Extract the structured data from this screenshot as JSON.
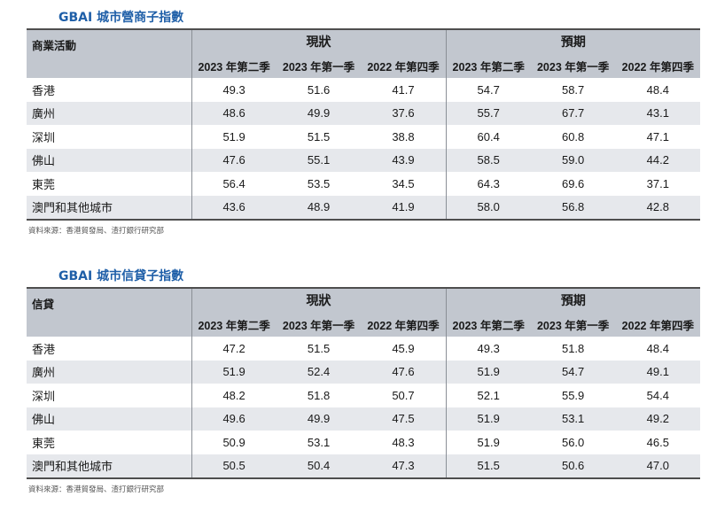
{
  "table1": {
    "title": "GBAI 城市營商子指數",
    "label_header": "商業活動",
    "group_current": "現狀",
    "group_expected": "預期",
    "periods": [
      "2023 年第二季",
      "2023 年第一季",
      "2022 年第四季",
      "2023 年第二季",
      "2023 年第一季",
      "2022 年第四季"
    ],
    "rows": [
      {
        "city": "香港",
        "v": [
          "49.3",
          "51.6",
          "41.7",
          "54.7",
          "58.7",
          "48.4"
        ]
      },
      {
        "city": "廣州",
        "v": [
          "48.6",
          "49.9",
          "37.6",
          "55.7",
          "67.7",
          "43.1"
        ]
      },
      {
        "city": "深圳",
        "v": [
          "51.9",
          "51.5",
          "38.8",
          "60.4",
          "60.8",
          "47.1"
        ]
      },
      {
        "city": "佛山",
        "v": [
          "47.6",
          "55.1",
          "43.9",
          "58.5",
          "59.0",
          "44.2"
        ]
      },
      {
        "city": "東莞",
        "v": [
          "56.4",
          "53.5",
          "34.5",
          "64.3",
          "69.6",
          "37.1"
        ]
      },
      {
        "city": "澳門和其他城市",
        "v": [
          "43.6",
          "48.9",
          "41.9",
          "58.0",
          "56.8",
          "42.8"
        ]
      }
    ],
    "source": "資料來源：香港貿發局、渣打銀行研究部"
  },
  "table2": {
    "title": "GBAI 城市信貸子指數",
    "label_header": "信貸",
    "group_current": "現狀",
    "group_expected": "預期",
    "periods": [
      "2023 年第二季",
      "2023 年第一季",
      "2022 年第四季",
      "2023 年第二季",
      "2023 年第一季",
      "2022 年第四季"
    ],
    "rows": [
      {
        "city": "香港",
        "v": [
          "47.2",
          "51.5",
          "45.9",
          "49.3",
          "51.8",
          "48.4"
        ]
      },
      {
        "city": "廣州",
        "v": [
          "51.9",
          "52.4",
          "47.6",
          "51.9",
          "54.7",
          "49.1"
        ]
      },
      {
        "city": "深圳",
        "v": [
          "48.2",
          "51.8",
          "50.7",
          "52.1",
          "55.9",
          "54.4"
        ]
      },
      {
        "city": "佛山",
        "v": [
          "49.6",
          "49.9",
          "47.5",
          "51.9",
          "53.1",
          "49.2"
        ]
      },
      {
        "city": "東莞",
        "v": [
          "50.9",
          "53.1",
          "48.3",
          "51.9",
          "56.0",
          "46.5"
        ]
      },
      {
        "city": "澳門和其他城市",
        "v": [
          "50.5",
          "50.4",
          "47.3",
          "51.5",
          "50.6",
          "47.0"
        ]
      }
    ],
    "source": "資料來源：香港貿發局、渣打銀行研究部"
  }
}
